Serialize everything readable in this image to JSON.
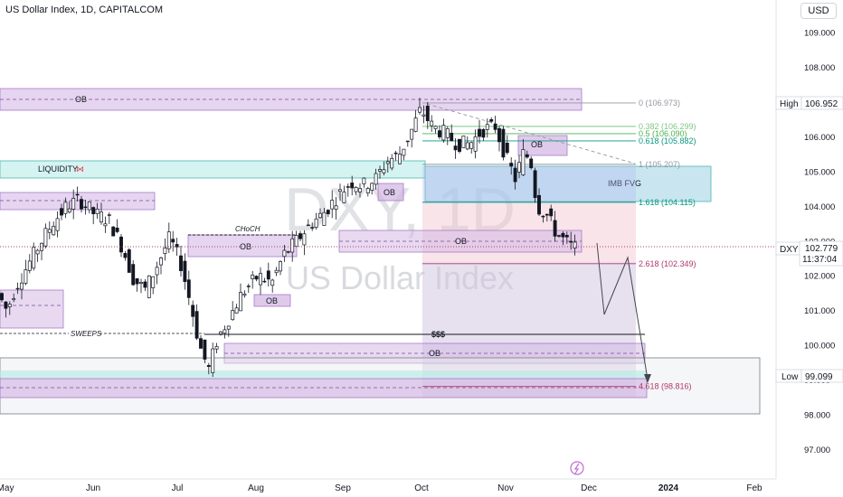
{
  "header": {
    "title": "US Dollar Index, 1D, CAPITALCOM",
    "currency": "USD"
  },
  "watermark": {
    "symbol": "DXY, 1D",
    "name": "US Dollar Index"
  },
  "chart_data": {
    "type": "candlestick",
    "symbol": "DXY",
    "x_ticks": [
      "May",
      "Jun",
      "Jul",
      "Aug",
      "Sep",
      "Oct",
      "Nov",
      "Dec",
      "2024",
      "Feb"
    ],
    "y_ticks": [
      "109.000",
      "108.000",
      "107.000",
      "106.000",
      "105.000",
      "104.000",
      "103.000",
      "102.000",
      "101.000",
      "100.000",
      "99.000",
      "98.000",
      "97.000"
    ],
    "ylim": [
      96.5,
      109.4
    ],
    "price_badges": {
      "high_label": "High",
      "high_value": "106.952",
      "sym_label": "DXY",
      "last_value": "102.779",
      "countdown": "11:37:04",
      "low_label": "Low",
      "low_value": "99.099"
    },
    "fib_levels": [
      {
        "label": "0 (106.973)",
        "value": 106.973,
        "color": "#9598a1"
      },
      {
        "label": "0.382 (106.299)",
        "value": 106.299,
        "color": "#81c784"
      },
      {
        "label": "0.5 (106.090)",
        "value": 106.09,
        "color": "#4caf50"
      },
      {
        "label": "0.618 (105.882)",
        "value": 105.882,
        "color": "#089981"
      },
      {
        "label": "1 (105.207)",
        "value": 105.207,
        "color": "#9598a1"
      },
      {
        "label": "1.618 (104.115)",
        "value": 104.115,
        "color": "#089981"
      },
      {
        "label": "2.618 (102.349)",
        "value": 102.349,
        "color": "#b2386b"
      },
      {
        "label": "4.618 (98.816)",
        "value": 98.816,
        "color": "#b2386b"
      }
    ],
    "zones": [
      {
        "label": "OB",
        "kind": "ob",
        "top": 107.3,
        "bottom": 106.65
      },
      {
        "label": "LIQUIDITY",
        "kind": "liquidity",
        "top": 105.3,
        "bottom": 104.78
      },
      {
        "label": "IMB FVG",
        "kind": "fvg",
        "top": 105.15,
        "bottom": 104.15
      },
      {
        "label": "OB",
        "kind": "ob",
        "top": 103.4,
        "bottom": 102.75
      },
      {
        "label": "OB",
        "kind": "ob",
        "top": 100.2,
        "bottom": 99.55
      },
      {
        "label": "OB",
        "kind": "ob",
        "top": 105.9,
        "bottom": 105.4
      },
      {
        "label": "OB",
        "kind": "ob",
        "top": 104.8,
        "bottom": 104.3
      },
      {
        "label": "OB",
        "kind": "ob",
        "top": 103.2,
        "bottom": 102.6
      },
      {
        "label": "OB",
        "kind": "ob",
        "top": 101.7,
        "bottom": 101.35
      }
    ],
    "annotations": [
      "CHoCH",
      "SWEEPS",
      "$$$"
    ]
  }
}
